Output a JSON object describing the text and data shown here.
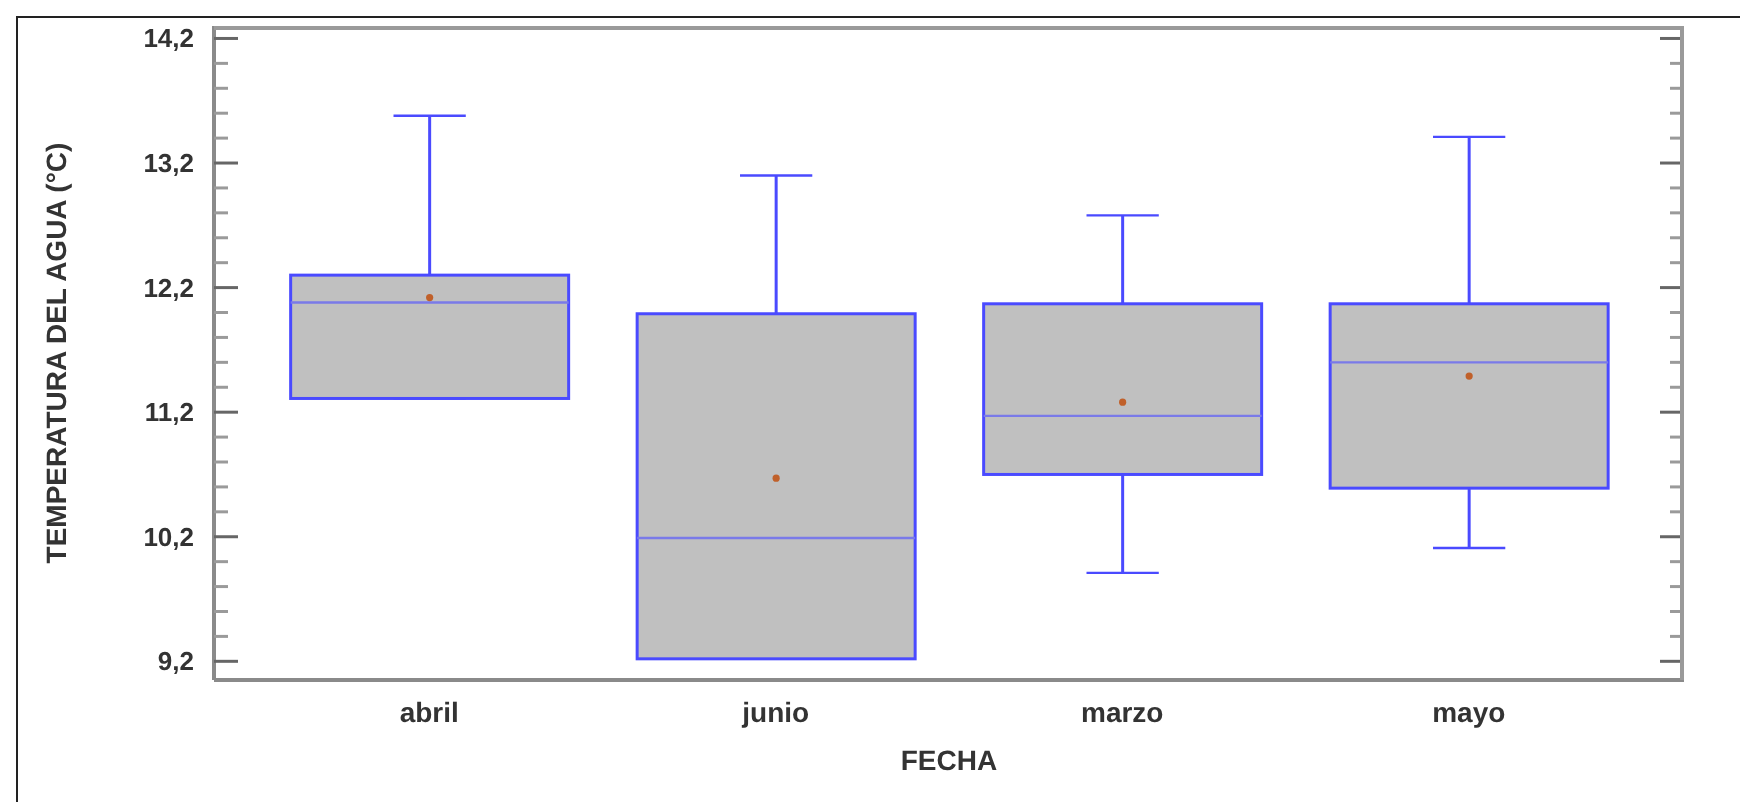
{
  "chart_data": {
    "type": "box",
    "xlabel": "FECHA",
    "ylabel": "TEMPERATURA DEL AGUA (°C)",
    "color": "#c0c0c0",
    "categories": [
      "abril",
      "junio",
      "marzo",
      "mayo"
    ],
    "boxes": [
      {
        "low": 11.31,
        "q1": 11.31,
        "median": 12.08,
        "q3": 12.3,
        "high": 13.58,
        "mean": 12.12
      },
      {
        "low": 9.22,
        "q1": 9.22,
        "median": 10.19,
        "q3": 11.99,
        "high": 13.1,
        "mean": 10.67
      },
      {
        "low": 9.91,
        "q1": 10.7,
        "median": 11.17,
        "q3": 12.07,
        "high": 12.78,
        "mean": 11.28
      },
      {
        "low": 10.11,
        "q1": 10.59,
        "median": 11.6,
        "q3": 12.07,
        "high": 13.41,
        "mean": 11.49
      }
    ],
    "ylim": [
      9.05,
      14.3
    ],
    "yticks": [
      {
        "value": 9.2,
        "label": "9,2"
      },
      {
        "value": 9.4,
        "label": null
      },
      {
        "value": 9.6,
        "label": null
      },
      {
        "value": 9.8,
        "label": null
      },
      {
        "value": 10.0,
        "label": null
      },
      {
        "value": 10.2,
        "label": "10,2"
      },
      {
        "value": 10.4,
        "label": null
      },
      {
        "value": 10.6,
        "label": null
      },
      {
        "value": 10.8,
        "label": null
      },
      {
        "value": 11.0,
        "label": null
      },
      {
        "value": 11.2,
        "label": "11,2"
      },
      {
        "value": 11.4,
        "label": null
      },
      {
        "value": 11.6,
        "label": null
      },
      {
        "value": 11.8,
        "label": null
      },
      {
        "value": 12.0,
        "label": null
      },
      {
        "value": 12.2,
        "label": "12,2"
      },
      {
        "value": 12.4,
        "label": null
      },
      {
        "value": 12.6,
        "label": null
      },
      {
        "value": 12.8,
        "label": null
      },
      {
        "value": 13.0,
        "label": null
      },
      {
        "value": 13.2,
        "label": "13,2"
      },
      {
        "value": 13.4,
        "label": null
      },
      {
        "value": 13.6,
        "label": null
      },
      {
        "value": 13.8,
        "label": null
      },
      {
        "value": 14.0,
        "label": null
      },
      {
        "value": 14.2,
        "label": "14,2"
      }
    ]
  }
}
